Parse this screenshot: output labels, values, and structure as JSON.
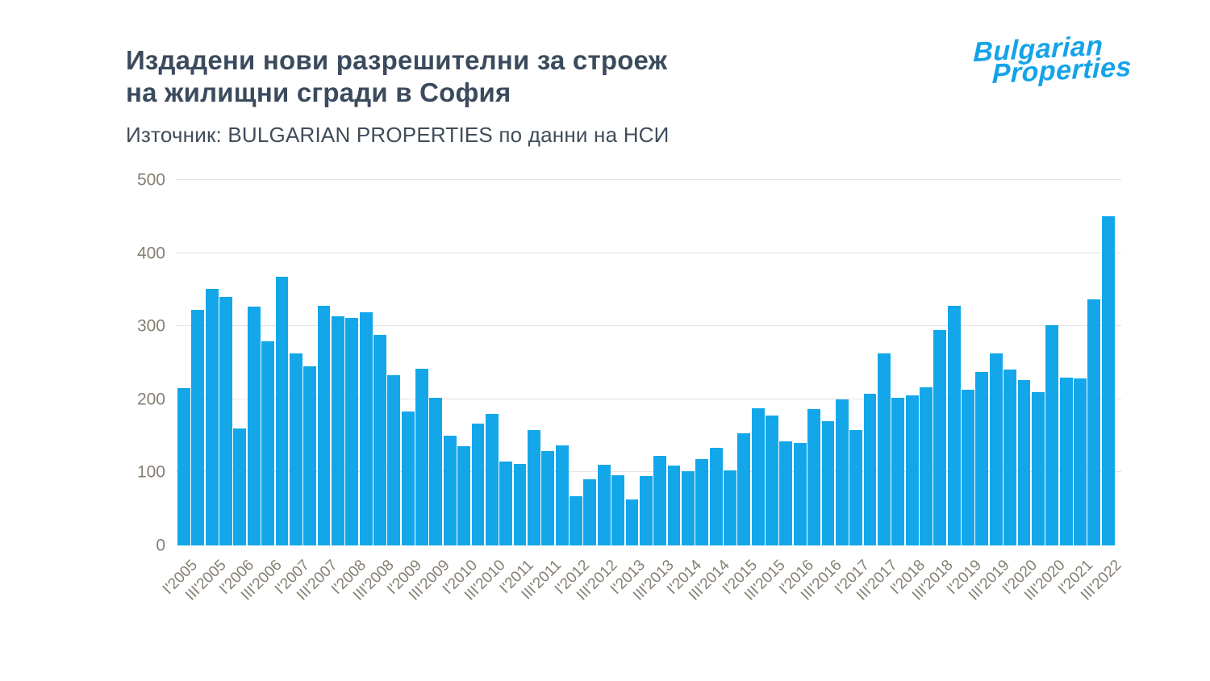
{
  "header": {
    "title_line1": "Издадени нови разрешителни за строеж",
    "title_line2": "на жилищни сгради в София",
    "title_color": "#3b4b5d",
    "source": "Източник: BULGARIAN PROPERTIES по данни на НСИ",
    "source_color": "#404c59"
  },
  "logo": {
    "line1": "Bulgarian",
    "line2": "Properties",
    "color": "#14a3e9"
  },
  "chart_data": {
    "type": "bar",
    "title": "Издадени нови разрешителни за строеж на жилищни сгради в София",
    "source": "Източник: BULGARIAN PROPERTIES по данни на НСИ",
    "ylim": [
      0,
      500
    ],
    "y_ticks": [
      0,
      100,
      200,
      300,
      400,
      500
    ],
    "grid": "horizontal",
    "legend": "none",
    "bar_color": "#13a7ea",
    "axis_label_color": "#857f72",
    "gridline_color": "#e5e4e1",
    "x_label_every_n_bars": 2,
    "x_labels": [
      "I'2005",
      "III'2005",
      "I'2006",
      "III'2006",
      "I'2007",
      "III'2007",
      "I'2008",
      "III'2008",
      "I'2009",
      "III'2009",
      "I'2010",
      "III'2010",
      "I'2011",
      "III'2011",
      "I'2012",
      "III'2012",
      "I'2013",
      "III'2013",
      "I'2014",
      "III'2014",
      "I'2015",
      "III'2015",
      "I'2016",
      "III'2016",
      "I'2017",
      "III'2017",
      "I'2018",
      "III'2018",
      "I'2019",
      "III'2019",
      "I'2020",
      "III'2020",
      "I'2021",
      "III'2022"
    ],
    "values": [
      215,
      322,
      351,
      340,
      160,
      327,
      279,
      368,
      263,
      245,
      328,
      313,
      311,
      319,
      288,
      233,
      183,
      242,
      202,
      150,
      136,
      167,
      180,
      115,
      112,
      158,
      129,
      137,
      67,
      91,
      110,
      96,
      63,
      95,
      123,
      109,
      102,
      118,
      134,
      103,
      153,
      188,
      178,
      142,
      140,
      186,
      170,
      200,
      158,
      207,
      263,
      202,
      205,
      216,
      295,
      328,
      213,
      237,
      263,
      241,
      226,
      210,
      301,
      230,
      228,
      337,
      450
    ]
  }
}
